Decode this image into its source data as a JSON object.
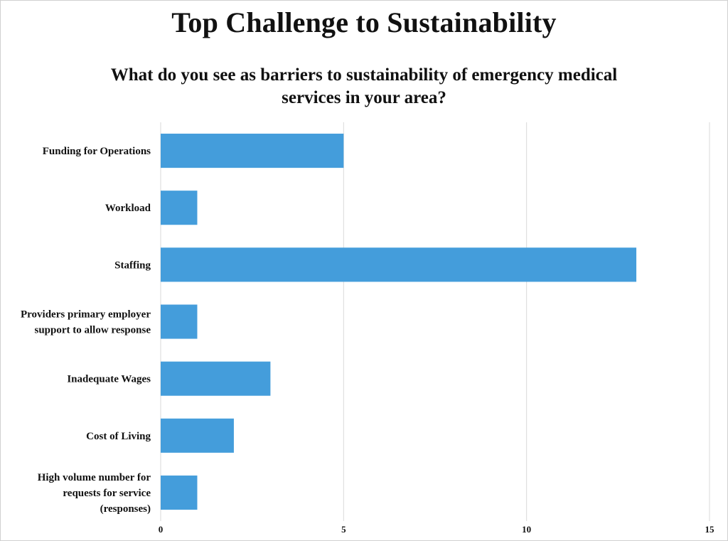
{
  "chart_data": {
    "type": "bar",
    "orientation": "horizontal",
    "title": "Top Challenge to Sustainability",
    "subtitle": "What do you see as barriers to sustainability of emergency medical services in your area?",
    "categories": [
      "Funding for Operations",
      "Workload",
      "Staffing",
      "Providers primary employer support to allow response",
      "Inadequate Wages",
      "Cost of Living",
      "High volume number for requests for service (responses)"
    ],
    "category_lines": [
      [
        "Funding for Operations"
      ],
      [
        "Workload"
      ],
      [
        "Staffing"
      ],
      [
        "Providers primary employer",
        "support to allow response"
      ],
      [
        "Inadequate Wages"
      ],
      [
        "Cost of Living"
      ],
      [
        "High volume number for",
        "requests for service",
        "(responses)"
      ]
    ],
    "values": [
      5,
      1,
      13,
      1,
      3,
      2,
      1
    ],
    "xlim": [
      0,
      15
    ],
    "xticks": [
      "0",
      "5",
      "10",
      "15"
    ],
    "grid": true,
    "bar_color": "#449ddb",
    "grid_color": "#d9d9d9"
  }
}
